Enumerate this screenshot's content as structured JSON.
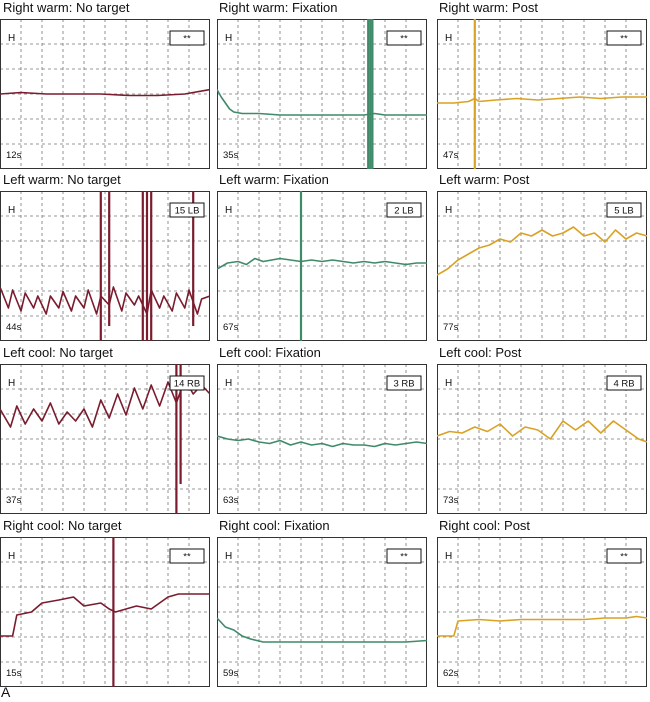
{
  "figure_label": "A",
  "colors": {
    "no_target": "#7a1b2e",
    "fixation": "#3f8a68",
    "post": "#d9a224",
    "grid": "#777777",
    "frame": "#333333"
  },
  "chart_data": [
    {
      "type": "line",
      "row": 0,
      "col": 0,
      "title": "Right warm: No target",
      "eye_label": "H",
      "badge": "**",
      "duration": "12s",
      "color_key": "no_target",
      "x": [
        0,
        10,
        22,
        35,
        48,
        62,
        75,
        88,
        100
      ],
      "y": [
        0.5,
        0.51,
        0.5,
        0.5,
        0.5,
        0.49,
        0.49,
        0.5,
        0.53
      ],
      "spikes": []
    },
    {
      "type": "line",
      "row": 0,
      "col": 1,
      "title": "Right warm: Fixation",
      "eye_label": "H",
      "badge": "**",
      "duration": "35s",
      "color_key": "fixation",
      "x": [
        0,
        2,
        4,
        6,
        8,
        12,
        20,
        30,
        45,
        60,
        70,
        75,
        80,
        90,
        100
      ],
      "y": [
        0.53,
        0.48,
        0.44,
        0.4,
        0.38,
        0.37,
        0.37,
        0.36,
        0.36,
        0.36,
        0.36,
        0.37,
        0.36,
        0.36,
        0.36
      ],
      "spikes": [
        {
          "x": 72,
          "from": 0.0,
          "to": 1.0
        },
        {
          "x": 73,
          "from": 0.0,
          "to": 1.0
        },
        {
          "x": 74,
          "from": 0.0,
          "to": 1.0
        }
      ]
    },
    {
      "type": "line",
      "row": 0,
      "col": 2,
      "title": "Right warm: Post",
      "eye_label": "H",
      "badge": "**",
      "duration": "47s",
      "color_key": "post",
      "x": [
        0,
        8,
        15,
        18,
        20,
        28,
        38,
        48,
        58,
        68,
        78,
        88,
        100
      ],
      "y": [
        0.44,
        0.44,
        0.45,
        0.47,
        0.45,
        0.46,
        0.47,
        0.46,
        0.47,
        0.48,
        0.47,
        0.48,
        0.48
      ],
      "spikes": [
        {
          "x": 18,
          "from": 0.0,
          "to": 1.0
        }
      ]
    },
    {
      "type": "line",
      "row": 1,
      "col": 0,
      "title": "Left warm: No target",
      "eye_label": "H",
      "badge": "15 LB",
      "duration": "44s",
      "color_key": "no_target",
      "x": [
        0,
        4,
        6,
        10,
        12,
        16,
        18,
        22,
        24,
        28,
        30,
        34,
        36,
        40,
        42,
        46,
        48,
        52,
        54,
        58,
        60,
        64,
        66,
        70,
        72,
        76,
        78,
        82,
        84,
        88,
        90,
        94,
        96,
        100
      ],
      "y": [
        0.36,
        0.22,
        0.34,
        0.2,
        0.32,
        0.22,
        0.3,
        0.18,
        0.3,
        0.22,
        0.33,
        0.2,
        0.3,
        0.22,
        0.34,
        0.18,
        0.3,
        0.24,
        0.36,
        0.2,
        0.32,
        0.24,
        0.3,
        0.18,
        0.34,
        0.22,
        0.3,
        0.2,
        0.32,
        0.22,
        0.34,
        0.18,
        0.28,
        0.3
      ],
      "spikes": [
        {
          "x": 48,
          "from": 0.0,
          "to": 1.0
        },
        {
          "x": 52,
          "from": 0.1,
          "to": 1.0
        },
        {
          "x": 68,
          "from": 0.0,
          "to": 1.0
        },
        {
          "x": 70,
          "from": 0.0,
          "to": 1.0
        },
        {
          "x": 72,
          "from": 0.0,
          "to": 1.0
        },
        {
          "x": 92,
          "from": 0.1,
          "to": 1.0
        }
      ]
    },
    {
      "type": "line",
      "row": 1,
      "col": 1,
      "title": "Left warm: Fixation",
      "eye_label": "H",
      "badge": "2 LB",
      "duration": "67s",
      "color_key": "fixation",
      "x": [
        0,
        5,
        10,
        14,
        18,
        22,
        26,
        30,
        35,
        40,
        45,
        50,
        55,
        60,
        65,
        70,
        75,
        80,
        85,
        90,
        95,
        100
      ],
      "y": [
        0.48,
        0.52,
        0.53,
        0.51,
        0.55,
        0.53,
        0.54,
        0.55,
        0.54,
        0.53,
        0.54,
        0.53,
        0.54,
        0.53,
        0.52,
        0.53,
        0.52,
        0.53,
        0.52,
        0.51,
        0.52,
        0.52
      ],
      "spikes": [
        {
          "x": 40,
          "from": 0.0,
          "to": 1.0
        }
      ]
    },
    {
      "type": "line",
      "row": 1,
      "col": 2,
      "title": "Left warm: Post",
      "eye_label": "H",
      "badge": "5 LB",
      "duration": "77s",
      "color_key": "post",
      "x": [
        0,
        5,
        10,
        15,
        20,
        25,
        30,
        35,
        40,
        45,
        50,
        55,
        60,
        65,
        70,
        75,
        80,
        85,
        90,
        95,
        100
      ],
      "y": [
        0.44,
        0.48,
        0.54,
        0.58,
        0.62,
        0.64,
        0.68,
        0.66,
        0.72,
        0.7,
        0.74,
        0.7,
        0.72,
        0.76,
        0.7,
        0.72,
        0.66,
        0.74,
        0.68,
        0.72,
        0.7
      ],
      "spikes": []
    },
    {
      "type": "line",
      "row": 2,
      "col": 0,
      "title": "Left cool: No target",
      "eye_label": "H",
      "badge": "14 RB",
      "duration": "37s",
      "color_key": "no_target",
      "x": [
        0,
        5,
        8,
        12,
        16,
        20,
        24,
        28,
        32,
        36,
        40,
        44,
        48,
        52,
        56,
        60,
        64,
        68,
        72,
        76,
        80,
        84,
        88,
        92,
        96,
        100
      ],
      "y": [
        0.7,
        0.58,
        0.72,
        0.6,
        0.7,
        0.62,
        0.74,
        0.6,
        0.68,
        0.62,
        0.7,
        0.58,
        0.76,
        0.64,
        0.8,
        0.66,
        0.84,
        0.7,
        0.86,
        0.72,
        0.88,
        0.74,
        0.9,
        0.8,
        0.86,
        0.8
      ],
      "spikes": [
        {
          "x": 84,
          "from": 0.0,
          "to": 1.0
        },
        {
          "x": 86,
          "from": 0.2,
          "to": 1.0
        }
      ]
    },
    {
      "type": "line",
      "row": 2,
      "col": 1,
      "title": "Left cool: Fixation",
      "eye_label": "H",
      "badge": "3 RB",
      "duration": "63s",
      "color_key": "fixation",
      "x": [
        0,
        5,
        10,
        15,
        20,
        25,
        30,
        35,
        40,
        45,
        50,
        55,
        60,
        65,
        70,
        75,
        80,
        85,
        90,
        95,
        100
      ],
      "y": [
        0.52,
        0.5,
        0.49,
        0.5,
        0.48,
        0.47,
        0.49,
        0.46,
        0.48,
        0.46,
        0.47,
        0.45,
        0.47,
        0.46,
        0.46,
        0.45,
        0.47,
        0.46,
        0.47,
        0.48,
        0.47
      ],
      "spikes": []
    },
    {
      "type": "line",
      "row": 2,
      "col": 2,
      "title": "Left cool: Post",
      "eye_label": "H",
      "badge": "4 RB",
      "duration": "73s",
      "color_key": "post",
      "x": [
        0,
        6,
        12,
        18,
        24,
        30,
        36,
        42,
        48,
        54,
        60,
        66,
        72,
        78,
        84,
        90,
        96,
        100
      ],
      "y": [
        0.52,
        0.55,
        0.54,
        0.58,
        0.55,
        0.6,
        0.52,
        0.58,
        0.56,
        0.5,
        0.62,
        0.56,
        0.62,
        0.54,
        0.62,
        0.56,
        0.5,
        0.48
      ],
      "spikes": []
    },
    {
      "type": "line",
      "row": 3,
      "col": 0,
      "title": "Right cool: No target",
      "eye_label": "H",
      "badge": "**",
      "duration": "15s",
      "color_key": "no_target",
      "x": [
        0,
        6,
        8,
        15,
        20,
        28,
        35,
        40,
        48,
        52,
        55,
        60,
        65,
        72,
        80,
        85,
        90,
        100
      ],
      "y": [
        0.34,
        0.34,
        0.48,
        0.5,
        0.56,
        0.58,
        0.6,
        0.54,
        0.56,
        0.52,
        0.5,
        0.52,
        0.54,
        0.52,
        0.6,
        0.62,
        0.62,
        0.62
      ],
      "spikes": [
        {
          "x": 54,
          "from": 0.0,
          "to": 1.0
        }
      ]
    },
    {
      "type": "line",
      "row": 3,
      "col": 1,
      "title": "Right cool: Fixation",
      "eye_label": "H",
      "badge": "**",
      "duration": "59s",
      "color_key": "fixation",
      "x": [
        0,
        4,
        8,
        12,
        16,
        22,
        30,
        40,
        50,
        60,
        70,
        80,
        90,
        100
      ],
      "y": [
        0.46,
        0.4,
        0.38,
        0.34,
        0.32,
        0.3,
        0.3,
        0.3,
        0.3,
        0.3,
        0.3,
        0.3,
        0.3,
        0.31
      ],
      "spikes": []
    },
    {
      "type": "line",
      "row": 3,
      "col": 2,
      "title": "Right cool: Post",
      "eye_label": "H",
      "badge": "**",
      "duration": "62s",
      "color_key": "post",
      "x": [
        0,
        8,
        10,
        20,
        30,
        40,
        50,
        60,
        70,
        80,
        90,
        95,
        100
      ],
      "y": [
        0.34,
        0.34,
        0.44,
        0.45,
        0.44,
        0.45,
        0.45,
        0.45,
        0.45,
        0.46,
        0.46,
        0.47,
        0.46
      ],
      "spikes": []
    }
  ]
}
